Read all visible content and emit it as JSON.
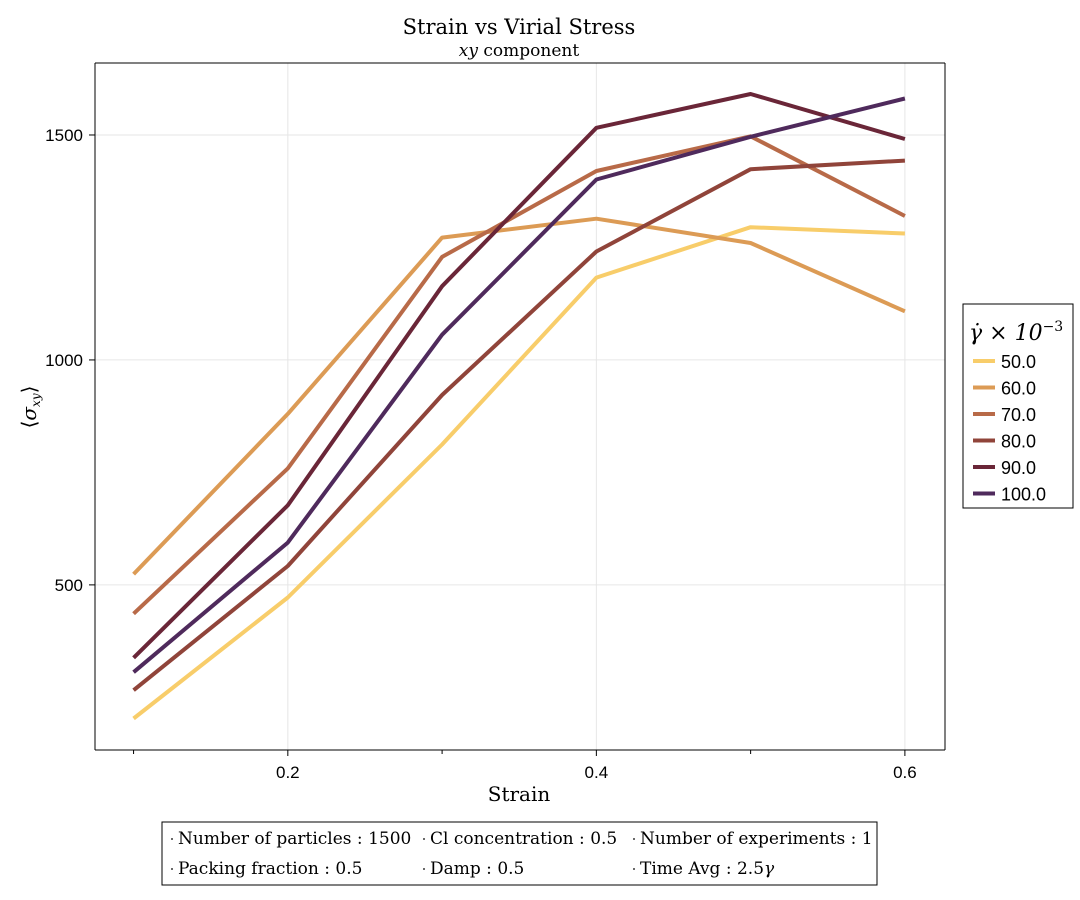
{
  "chart_data": {
    "type": "line",
    "title": "Strain vs Virial Stress",
    "subtitle_var": "xy",
    "subtitle_rest": " component",
    "xlabel": "Strain",
    "ylabel_open": "⟨",
    "ylabel_sigma": "σ",
    "ylabel_sub": "xy",
    "ylabel_close": "⟩",
    "x": [
      0.1,
      0.2,
      0.3,
      0.4,
      0.5,
      0.6
    ],
    "xlim": [
      0.075,
      0.626
    ],
    "ylim": [
      133,
      1660
    ],
    "xticks": [
      0.2,
      0.4,
      0.6
    ],
    "xtick_labels": [
      "0.2",
      "0.4",
      "0.6"
    ],
    "xminor_ticks": [
      0.1,
      0.3,
      0.5
    ],
    "yticks": [
      500,
      1000,
      1500
    ],
    "ytick_labels": [
      "500",
      "1000",
      "1500"
    ],
    "grid": true,
    "legend_position": "right",
    "legend_title_prefix": "γ̇ × 10",
    "legend_title_exp": "−3",
    "series": [
      {
        "name": "50.0",
        "color": "#f8cd6a",
        "values": [
          203,
          472,
          812,
          1183,
          1295,
          1281
        ]
      },
      {
        "name": "60.0",
        "color": "#dc9b55",
        "values": [
          524,
          880,
          1272,
          1314,
          1260,
          1108
        ]
      },
      {
        "name": "70.0",
        "color": "#b86a48",
        "values": [
          436,
          759,
          1229,
          1420,
          1497,
          1320
        ]
      },
      {
        "name": "80.0",
        "color": "#90443a",
        "values": [
          266,
          542,
          922,
          1241,
          1424,
          1443
        ]
      },
      {
        "name": "90.0",
        "color": "#6a2638",
        "values": [
          338,
          677,
          1164,
          1516,
          1591,
          1491
        ]
      },
      {
        "name": "100.0",
        "color": "#4f2a5c",
        "values": [
          306,
          594,
          1056,
          1401,
          1496,
          1581
        ]
      }
    ]
  },
  "info": {
    "rows": [
      [
        {
          "label": "Number of particles",
          "value": "1500"
        },
        {
          "label": "Cl concentration",
          "value": "0.5"
        },
        {
          "label": "Number of experiments",
          "value": "1"
        }
      ],
      [
        {
          "label": "Packing fraction",
          "value": "0.5"
        },
        {
          "label": "Damp",
          "value": "0.5"
        },
        {
          "label": "Time Avg",
          "value": "2.5",
          "suffix": "γ"
        }
      ]
    ]
  }
}
